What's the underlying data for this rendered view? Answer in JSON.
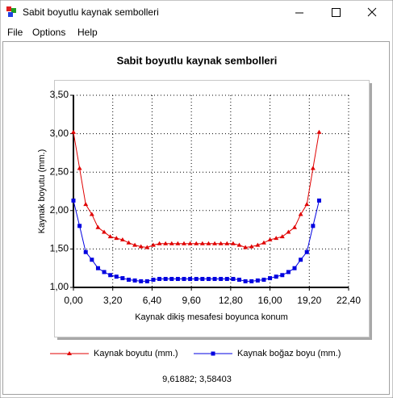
{
  "window": {
    "title": "Sabit boyutlu kaynak sembolleri"
  },
  "menu": [
    "File",
    "Options",
    "Help"
  ],
  "chart_data": {
    "type": "line",
    "title": "Sabit boyutlu kaynak sembolleri",
    "x_label": "Kaynak dikiş mesafesi boyunca konum",
    "y_label": "Kaynak boyutu (mm.)",
    "x": [
      0,
      0.5,
      1,
      1.5,
      2,
      2.5,
      3,
      3.5,
      4,
      4.5,
      5,
      5.5,
      6,
      6.5,
      7,
      7.5,
      8,
      8.5,
      9,
      9.5,
      10,
      10.5,
      11,
      11.5,
      12,
      12.5,
      13,
      13.5,
      14,
      14.5,
      15,
      15.5,
      16,
      16.5,
      17,
      17.5,
      18,
      18.5,
      19,
      19.5,
      20
    ],
    "series": [
      {
        "name": "Kaynak boyutu (mm.)",
        "color": "#e00000",
        "marker": "triangle",
        "values": [
          3.02,
          2.55,
          2.08,
          1.95,
          1.78,
          1.72,
          1.66,
          1.64,
          1.62,
          1.58,
          1.55,
          1.53,
          1.52,
          1.55,
          1.57,
          1.57,
          1.57,
          1.57,
          1.57,
          1.57,
          1.57,
          1.57,
          1.57,
          1.57,
          1.57,
          1.57,
          1.57,
          1.55,
          1.52,
          1.53,
          1.55,
          1.58,
          1.62,
          1.64,
          1.66,
          1.72,
          1.78,
          1.95,
          2.08,
          2.55,
          3.02
        ]
      },
      {
        "name": "Kaynak boğaz boyu (mm.)",
        "color": "#0000e0",
        "marker": "square",
        "values": [
          2.13,
          1.8,
          1.46,
          1.36,
          1.25,
          1.2,
          1.16,
          1.14,
          1.12,
          1.1,
          1.09,
          1.08,
          1.08,
          1.1,
          1.11,
          1.11,
          1.11,
          1.11,
          1.11,
          1.11,
          1.11,
          1.11,
          1.11,
          1.11,
          1.11,
          1.11,
          1.11,
          1.1,
          1.08,
          1.08,
          1.09,
          1.1,
          1.12,
          1.14,
          1.16,
          1.2,
          1.25,
          1.36,
          1.46,
          1.8,
          2.13
        ]
      }
    ],
    "xlim": [
      0,
      22.4
    ],
    "xticks": [
      {
        "value": 0,
        "label": "0,00"
      },
      {
        "value": 3.2,
        "label": "3,20"
      },
      {
        "value": 6.4,
        "label": "6,40"
      },
      {
        "value": 9.6,
        "label": "9,60"
      },
      {
        "value": 12.8,
        "label": "12,80"
      },
      {
        "value": 16,
        "label": "16,00"
      },
      {
        "value": 19.2,
        "label": "19,20"
      },
      {
        "value": 22.4,
        "label": "22,40"
      }
    ],
    "ylim": [
      1,
      3.5
    ],
    "yticks": [
      {
        "value": 1,
        "label": "1,00"
      },
      {
        "value": 1.5,
        "label": "1,50"
      },
      {
        "value": 2,
        "label": "2,00"
      },
      {
        "value": 2.5,
        "label": "2,50"
      },
      {
        "value": 3,
        "label": "3,00"
      },
      {
        "value": 3.5,
        "label": "3,50"
      }
    ],
    "grid": true
  },
  "status": "9,61882; 3,58403"
}
